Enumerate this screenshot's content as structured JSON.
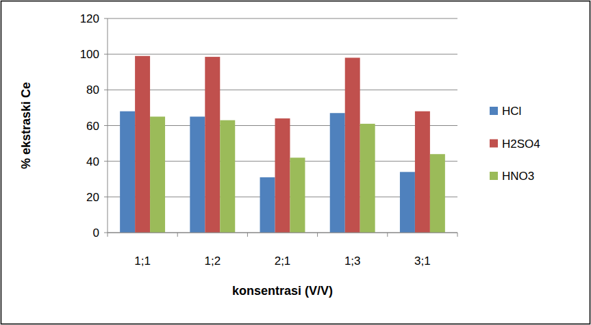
{
  "chart_data": {
    "type": "bar",
    "x_label": "konsentrasi (V/V)",
    "y_label": "% ekstraski Ce",
    "categories": [
      "1;1",
      "1;2",
      "2;1",
      "1;3",
      "3;1"
    ],
    "series": [
      {
        "name": "HCl",
        "color": "#4f81bd",
        "values": [
          68,
          65,
          31,
          67,
          34
        ]
      },
      {
        "name": "H2SO4",
        "color": "#c0504d",
        "values": [
          99,
          98.5,
          64,
          98,
          68
        ]
      },
      {
        "name": "HNO3",
        "color": "#9bbb59",
        "values": [
          65,
          63,
          42,
          61,
          44
        ]
      }
    ],
    "ylim": [
      0,
      120
    ],
    "yticks": [
      0,
      20,
      40,
      60,
      80,
      100,
      120
    ],
    "grid": true,
    "legend": "right"
  }
}
